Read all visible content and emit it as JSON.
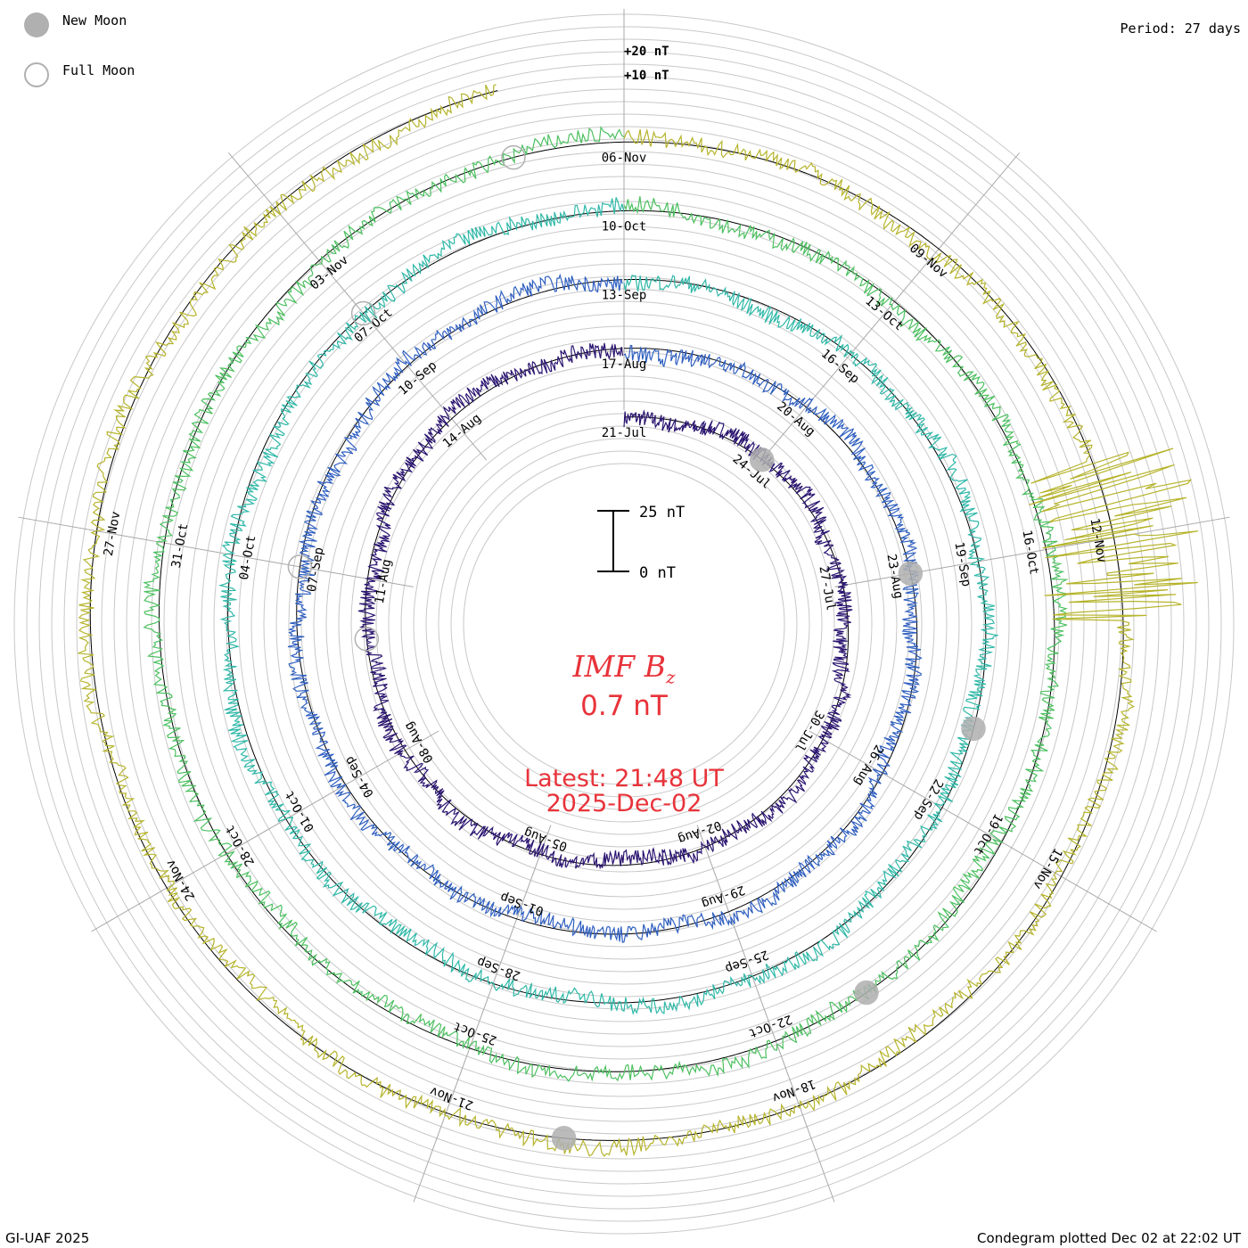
{
  "legend": {
    "new_moon_label": "New Moon",
    "full_moon_label": "Full Moon",
    "new_moon_color": "#b0b0b0",
    "full_moon_color": "#b0b0b0"
  },
  "period_label": "Period: 27 days",
  "credit": "GI-UAF 2025",
  "plotted": "Condegram plotted Dec 02 at 22:02 UT",
  "center": {
    "title": "IMF B",
    "title_sub": "z",
    "value": "0.7 nT",
    "latest_time": "Latest: 21:48 UT",
    "latest_date": "2025-Dec-02",
    "text_color": "#e8333a"
  },
  "chart_data": {
    "type": "line",
    "title": "IMF Bz",
    "subtype": "polar spiral condegram",
    "period_days": 27,
    "units": "nT",
    "reference_labels": [
      "+20 nT",
      "+10 nT"
    ],
    "scale_bar": {
      "top_label": "25 nT",
      "bottom_label": "0 nT",
      "value_nT": 25
    },
    "grid_step_nT": 5,
    "start_date": "21-Jul",
    "end_date": "02-Dec",
    "series_colors": [
      "#1c0f3c",
      "#2a1470",
      "#2a2aa8",
      "#2f5fc0",
      "#2f9ab8",
      "#2fb8a8",
      "#34c08a",
      "#4cc060",
      "#86c03c",
      "#b6b42c",
      "#c89a22",
      "#c87414",
      "#c8500e",
      "#b8140e"
    ],
    "date_labels": [
      "21-Jul",
      "24-Jul",
      "27-Jul",
      "30-Jul",
      "02-Aug",
      "05-Aug",
      "08-Aug",
      "11-Aug",
      "14-Aug",
      "17-Aug",
      "20-Aug",
      "23-Aug",
      "26-Aug",
      "29-Aug",
      "01-Sep",
      "04-Sep",
      "07-Sep",
      "10-Sep",
      "13-Sep",
      "16-Sep",
      "19-Sep",
      "22-Sep",
      "25-Sep",
      "28-Sep",
      "01-Oct",
      "04-Oct",
      "07-Oct",
      "10-Oct",
      "13-Oct",
      "16-Oct",
      "19-Oct",
      "22-Oct",
      "25-Oct",
      "28-Oct",
      "31-Oct",
      "03-Nov",
      "06-Nov",
      "09-Nov",
      "12-Nov",
      "15-Nov",
      "18-Nov",
      "21-Nov",
      "24-Nov",
      "27-Nov"
    ],
    "new_moons": [
      "24-Jul",
      "23-Aug",
      "21-Sep",
      "21-Oct",
      "20-Nov"
    ],
    "full_moons": [
      "10-Aug",
      "07-Sep",
      "07-Oct",
      "05-Nov"
    ],
    "notable_events": [
      {
        "date": "12-Nov",
        "bz_min_nT": -40,
        "bz_max_nT": 30
      }
    ]
  }
}
